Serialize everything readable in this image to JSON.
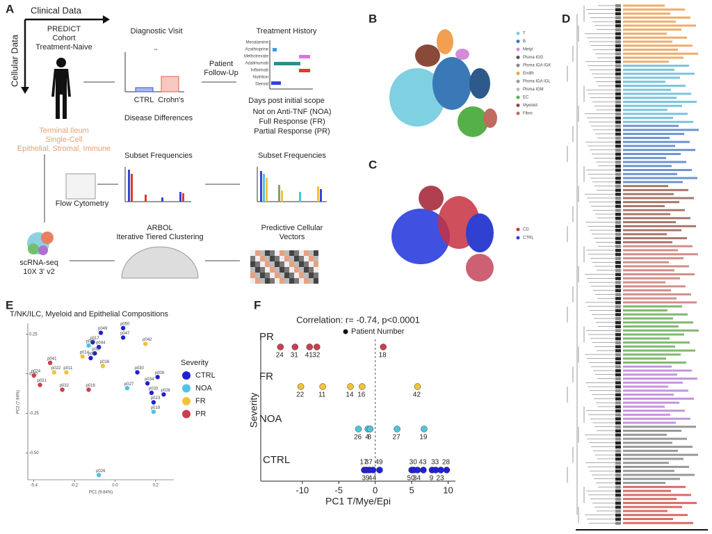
{
  "panels": [
    "A",
    "B",
    "C",
    "D",
    "E",
    "F"
  ],
  "panel_a": {
    "clinical_data": "Clinical Data",
    "cellular_data": "Cellular Data",
    "cohort": [
      "PREDICT",
      "Cohort",
      "Treatment-Naive"
    ],
    "tissue": [
      "Terminal Ileum",
      "Single-Cell",
      "Epithelial, Stromal, Immune"
    ],
    "diagnostic_visit": "Diagnostic Visit",
    "significance": "**",
    "ctrl": "CTRL",
    "crohns": "Crohn's",
    "disease_differences": "Disease Differences",
    "follow_up": [
      "Patient",
      "Follow-Up"
    ],
    "treatment_history": "Treatment History",
    "medications": [
      "Mesalamine",
      "Azathioprine",
      "Methotrexate",
      "Adalimumab",
      "Infliximab",
      "Nutrition",
      "Steroid"
    ],
    "days_post": "Days post initial scope",
    "responses": [
      "Not on Anti-TNF (NOA)",
      "Full Response (FR)",
      "Partial Response (PR)"
    ],
    "subset_frequencies_1": "Subset Frequencies",
    "subset_frequencies_2": "Subset Frequencies",
    "flow_cytometry": "Flow Cytometry",
    "scrnaseq": [
      "scRNA-seq",
      "10X 3' v2"
    ],
    "arbol": [
      "ARBOL",
      "Iterative Tiered Clustering"
    ],
    "vectors": [
      "Predictive Cellular",
      "Vectors"
    ]
  },
  "panel_b_legend": [
    {
      "name": "T",
      "color": "#7fd0e0"
    },
    {
      "name": "B",
      "color": "#3a78b8"
    },
    {
      "name": "Metyl",
      "color": "#d58ad8"
    },
    {
      "name": "Plsma IGG",
      "color": "#555555"
    },
    {
      "name": "Plsma IGA IGK",
      "color": "#888888"
    },
    {
      "name": "Endth",
      "color": "#f0a050"
    },
    {
      "name": "Plsma IGA IGL",
      "color": "#999999"
    },
    {
      "name": "Plsma IGM",
      "color": "#bbbbbb"
    },
    {
      "name": "EC",
      "color": "#56b04a"
    },
    {
      "name": "Myeloid",
      "color": "#8a4a3a"
    },
    {
      "name": "Fibro",
      "color": "#c06a60"
    }
  ],
  "panel_c_legend": [
    {
      "name": "CD",
      "color": "#c83040"
    },
    {
      "name": "CTRL",
      "color": "#3040d0"
    }
  ],
  "chart_data": [
    {
      "type": "scatter",
      "title": "T/NK/ILC, Myeloid and Epithelial Compositions",
      "x_label": "PC1  (9.84%)",
      "y_label": "PC2 (7.94%)",
      "legend_title": "Severity",
      "xlim": [
        -0.43,
        0.29
      ],
      "ylim": [
        -0.67,
        0.32
      ],
      "xticks": [
        -0.4,
        -0.2,
        {
          "value": 0,
          "label": "0.0"
        },
        0.2
      ],
      "yticks": [
        0.25,
        {
          "value": 0,
          "label": "0.00"
        },
        -0.25,
        {
          "value": -0.5,
          "label": "-0.50"
        }
      ],
      "series": [
        {
          "name": "CTRL",
          "color": "#2020d8",
          "labels": [
            "p049",
            "p050",
            "p047",
            "p017",
            "p044",
            "p037",
            "p035",
            "p030",
            "p009",
            "p034",
            "p033",
            "p028",
            "p023"
          ],
          "x": [
            -0.07,
            0.04,
            0.04,
            -0.11,
            -0.08,
            -0.1,
            -0.12,
            0.11,
            0.21,
            0.16,
            0.18,
            0.24,
            0.19
          ],
          "values": [
            0.26,
            0.29,
            0.23,
            0.2,
            0.17,
            0.13,
            0.1,
            0.01,
            -0.02,
            -0.06,
            -0.12,
            -0.13,
            -0.18
          ]
        },
        {
          "name": "NOA",
          "color": "#4fc3e0",
          "labels": [
            "p046",
            "p027",
            "p019",
            "p026"
          ],
          "x": [
            -0.13,
            0.06,
            0.19,
            -0.08
          ],
          "values": [
            0.18,
            -0.09,
            -0.24,
            -0.64
          ]
        },
        {
          "name": "FR",
          "color": "#f2c23a",
          "labels": [
            "p042",
            "p014",
            "p016",
            "p022",
            "p011"
          ],
          "x": [
            0.15,
            -0.16,
            -0.06,
            -0.3,
            -0.24
          ],
          "values": [
            0.19,
            0.11,
            0.05,
            0.01,
            0.01
          ]
        },
        {
          "name": "PR",
          "color": "#c84050",
          "labels": [
            "p041",
            "p024",
            "p031",
            "p032",
            "p018"
          ],
          "x": [
            -0.32,
            -0.4,
            -0.37,
            -0.26,
            -0.13
          ],
          "values": [
            0.07,
            -0.01,
            -0.07,
            -0.1,
            -0.1
          ]
        }
      ]
    },
    {
      "type": "dot",
      "title": "Correlation: r= -0.74, p<0.0001",
      "legend": "Patient Number",
      "x_label": "PC1 T/Mye/Epi",
      "y_label": "Severity",
      "xlim": [
        -15.7,
        11
      ],
      "xticks": [
        -10,
        -5,
        0,
        5,
        10
      ],
      "series": [
        {
          "name": "PR",
          "color": "#c84050",
          "labels": [
            24,
            31,
            41,
            32,
            18
          ],
          "values": [
            -13,
            -11,
            -9,
            -8,
            1.1
          ]
        },
        {
          "name": "FR",
          "color": "#f2c23a",
          "labels": [
            22,
            11,
            14,
            16,
            42
          ],
          "values": [
            -10.2,
            -7.2,
            -3.4,
            -1.8,
            5.8
          ]
        },
        {
          "name": "NOA",
          "color": "#4fc3e0",
          "labels": [
            26,
            4,
            8,
            27,
            19
          ],
          "values": [
            -2.3,
            -1,
            -0.7,
            3,
            6.7
          ]
        },
        {
          "name": "CTRL",
          "color": "#2020d8",
          "labels": [
            17,
            39,
            37,
            44,
            49,
            50,
            30,
            34,
            43,
            9,
            33,
            23,
            28
          ],
          "values": [
            -1.5,
            -1.2,
            -0.8,
            -0.3,
            0.6,
            5,
            5.3,
            5.8,
            6.6,
            7.8,
            8.3,
            9,
            9.8
          ]
        }
      ]
    }
  ]
}
